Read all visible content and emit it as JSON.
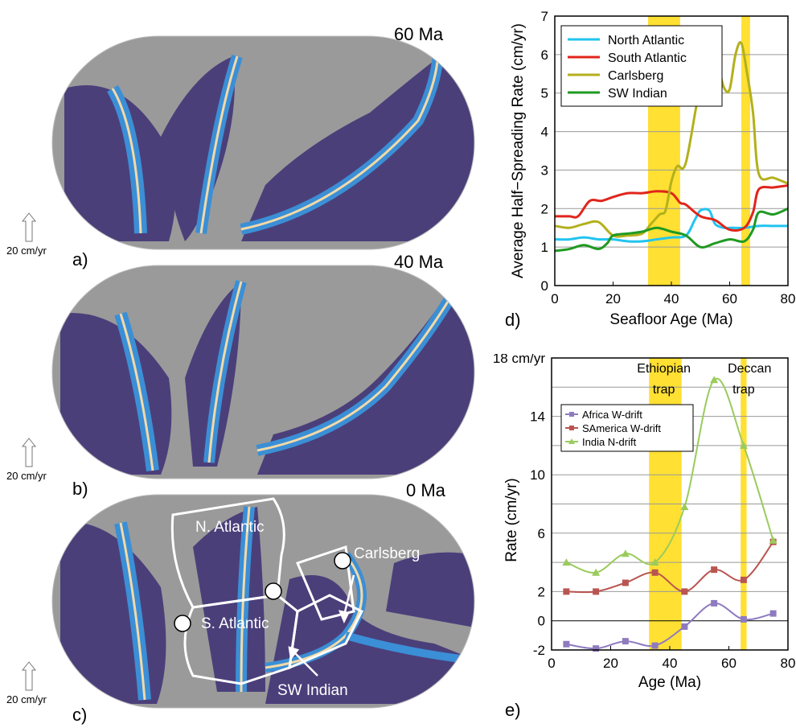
{
  "maps": [
    {
      "age_label": "60 Ma",
      "panel": "a)",
      "scale": "20 cm/yr"
    },
    {
      "age_label": "40 Ma",
      "panel": "b)",
      "scale": "20 cm/yr"
    },
    {
      "age_label": "0 Ma",
      "panel": "c)",
      "scale": "20 cm/yr",
      "region_labels": [
        "N. Atlantic",
        "S. Atlantic",
        "Carlsberg",
        "SW Indian"
      ]
    }
  ],
  "colors": {
    "map_land": "#9a9a9a",
    "map_deep": "#4b3f7a",
    "map_mid": "#3b8fd6",
    "map_ridge": "#f2d9a8",
    "north_atlantic": "#21c4ef",
    "south_atlantic": "#e0251b",
    "carlsberg": "#b3b01c",
    "sw_indian": "#1f9a22",
    "africa": "#8e7bbf",
    "samerica": "#b95550",
    "india": "#9acb5c",
    "highlight": "#ffe033"
  },
  "chart_data": [
    {
      "type": "line",
      "panel": "d)",
      "xlabel": "Seafloor Age (Ma)",
      "ylabel": "Average Half−Spreading Rate (cm/yr)",
      "xlim": [
        0,
        80
      ],
      "ylim": [
        0,
        7
      ],
      "xticks": [
        "0",
        "20",
        "40",
        "60",
        "80"
      ],
      "yticks": [
        "0",
        "1",
        "2",
        "3",
        "4",
        "5",
        "6",
        "7"
      ],
      "grid": "horizontal",
      "legend_position": "top-left",
      "highlight_bands": [
        [
          32,
          43
        ],
        [
          64,
          67
        ]
      ],
      "series": [
        {
          "name": "North Atlantic",
          "color": "#21c4ef",
          "x": [
            0,
            5,
            10,
            15,
            20,
            25,
            30,
            35,
            40,
            45,
            48,
            50,
            53,
            55,
            58,
            60,
            65,
            70,
            75,
            80
          ],
          "y": [
            1.2,
            1.2,
            1.25,
            1.2,
            1.2,
            1.15,
            1.15,
            1.2,
            1.25,
            1.3,
            1.7,
            1.95,
            1.95,
            1.6,
            1.5,
            1.5,
            1.5,
            1.55,
            1.55,
            1.55
          ]
        },
        {
          "name": "South Atlantic",
          "color": "#e0251b",
          "x": [
            0,
            5,
            8,
            12,
            16,
            20,
            25,
            30,
            35,
            40,
            43,
            45,
            50,
            55,
            60,
            65,
            68,
            70,
            75,
            80
          ],
          "y": [
            1.8,
            1.8,
            1.8,
            2.2,
            2.2,
            2.3,
            2.4,
            2.4,
            2.45,
            2.4,
            2.15,
            2.1,
            1.8,
            1.7,
            1.45,
            1.5,
            1.9,
            2.5,
            2.55,
            2.6
          ]
        },
        {
          "name": "Carlsberg",
          "color": "#b3b01c",
          "x": [
            0,
            5,
            10,
            15,
            20,
            25,
            30,
            33,
            36,
            38,
            40,
            42,
            45,
            50,
            54,
            56,
            58,
            60,
            62,
            64,
            66,
            68,
            70,
            75,
            80
          ],
          "y": [
            1.55,
            1.5,
            1.6,
            1.65,
            1.3,
            1.3,
            1.35,
            1.6,
            1.85,
            1.95,
            2.7,
            3.1,
            3.2,
            5.2,
            5.7,
            5.7,
            5.15,
            5.1,
            6.0,
            6.3,
            5.5,
            4.5,
            2.9,
            2.8,
            2.65
          ]
        },
        {
          "name": "SW Indian",
          "color": "#1f9a22",
          "x": [
            0,
            5,
            10,
            15,
            18,
            20,
            25,
            30,
            35,
            40,
            45,
            50,
            55,
            60,
            65,
            68,
            70,
            75,
            80
          ],
          "y": [
            0.9,
            0.95,
            1.05,
            0.95,
            1.1,
            1.3,
            1.35,
            1.4,
            1.5,
            1.4,
            1.3,
            1.0,
            1.1,
            1.2,
            1.15,
            1.45,
            1.9,
            1.85,
            2.0
          ]
        }
      ]
    },
    {
      "type": "line",
      "panel": "e)",
      "xlabel": "Age (Ma)",
      "ylabel": "Rate (cm/yr)",
      "xlim": [
        0,
        80
      ],
      "ylim": [
        -2,
        18
      ],
      "xticks": [
        "0",
        "20",
        "40",
        "60",
        "80"
      ],
      "yticks": [
        "-2",
        "0",
        "2",
        "6",
        "10",
        "14",
        "18 cm/yr"
      ],
      "grid": "horizontal",
      "legend_position": "top-left",
      "annotations": [
        "Ethiopian",
        "trap",
        "Deccan",
        "trap"
      ],
      "highlight_bands": [
        [
          33,
          44
        ],
        [
          64,
          66
        ]
      ],
      "series": [
        {
          "name": "Africa W-drift",
          "color": "#8e7bbf",
          "x": [
            5,
            15,
            25,
            35,
            45,
            55,
            65,
            75
          ],
          "y": [
            -1.6,
            -1.9,
            -1.4,
            -1.7,
            -0.4,
            1.2,
            0.1,
            0.5
          ]
        },
        {
          "name": "SAmerica W-drift",
          "color": "#b95550",
          "x": [
            5,
            15,
            25,
            35,
            45,
            55,
            65,
            75
          ],
          "y": [
            2.0,
            2.0,
            2.6,
            3.3,
            2.0,
            3.5,
            2.8,
            5.4
          ]
        },
        {
          "name": "India N-drift",
          "color": "#9acb5c",
          "x": [
            5,
            15,
            25,
            35,
            45,
            55,
            65,
            75
          ],
          "y": [
            4.0,
            3.3,
            4.6,
            4.0,
            7.8,
            16.5,
            12.0,
            5.5
          ]
        }
      ]
    }
  ]
}
